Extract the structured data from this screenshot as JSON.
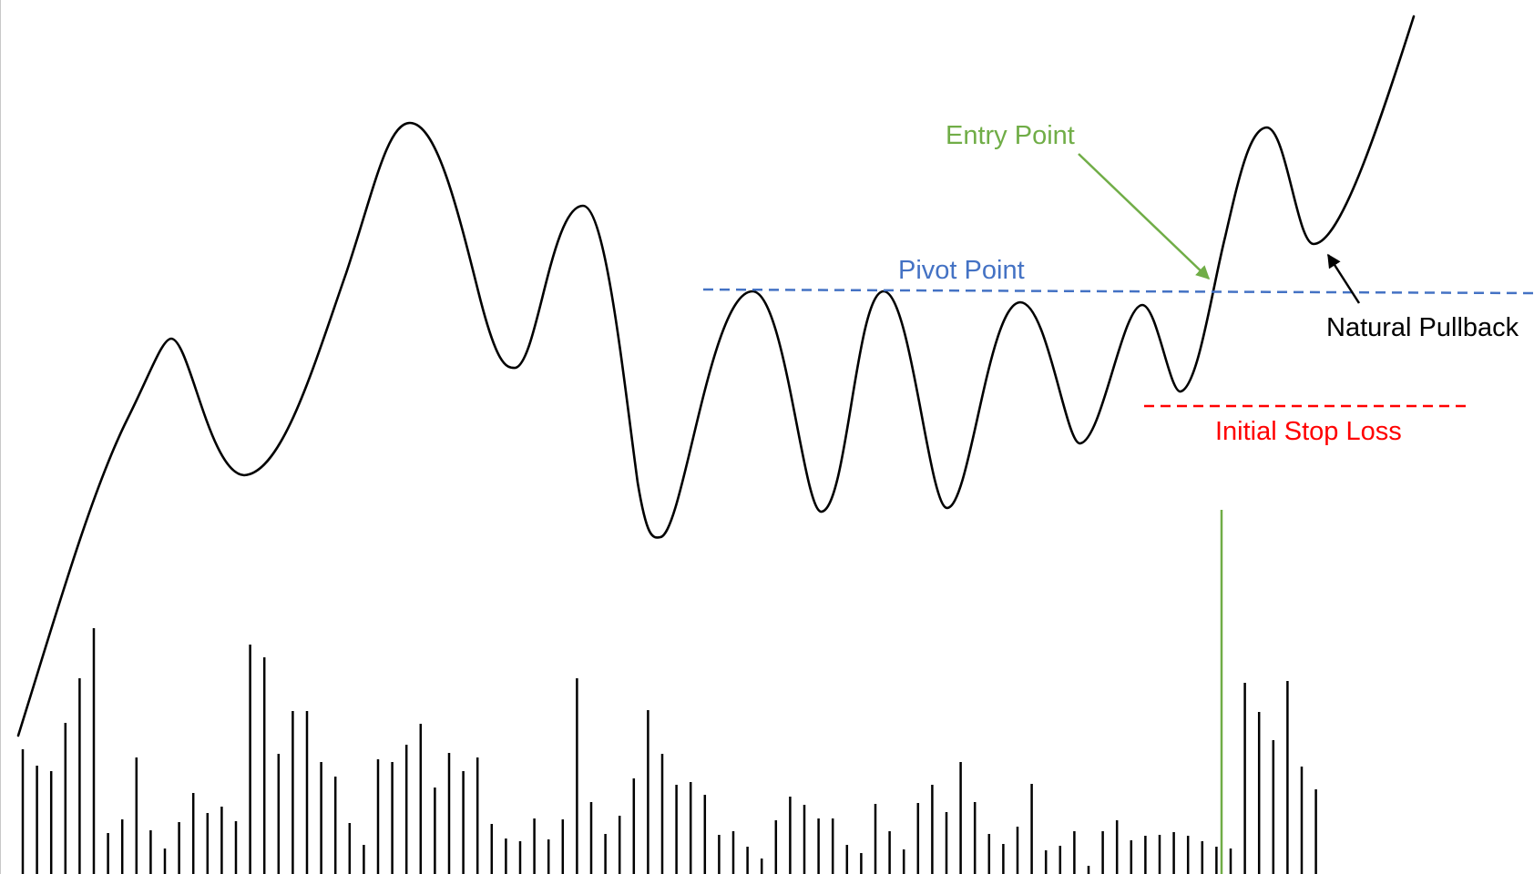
{
  "labels": {
    "entry": "Entry Point",
    "pivot": "Pivot Point",
    "pullback": "Natural Pullback",
    "stop": "Initial Stop Loss"
  },
  "colors": {
    "price_line": "#000000",
    "pivot": "#4472C4",
    "entry": "#70AD47",
    "stop": "#FF0000",
    "pullback": "#000000",
    "volume": "#000000",
    "breakout_volume": "#70AD47"
  },
  "diagram": {
    "price_path_shape": "uptrend, pullbacks, base with resistance at pivot, breakout above pivot, retest, continuation",
    "pivot_line_style": "dashed",
    "stop_line_style": "dashed",
    "volume_bar_count": 92,
    "breakout_volume_highlight": true
  }
}
